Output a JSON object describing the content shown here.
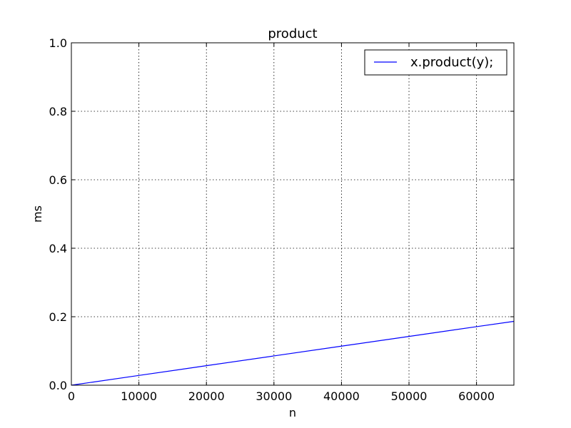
{
  "chart_data": {
    "type": "line",
    "title": "product",
    "xlabel": "n",
    "ylabel": "ms",
    "xlim": [
      0,
      65536
    ],
    "ylim": [
      0,
      1.0
    ],
    "x_ticks": [
      0,
      10000,
      20000,
      30000,
      40000,
      50000,
      60000
    ],
    "x_tick_labels": [
      "0",
      "10000",
      "20000",
      "30000",
      "40000",
      "50000",
      "60000"
    ],
    "y_ticks": [
      0,
      0.2,
      0.4,
      0.6,
      0.8,
      1.0
    ],
    "y_tick_labels": [
      "0.0",
      "0.2",
      "0.4",
      "0.6",
      "0.8",
      "1.0"
    ],
    "grid": true,
    "legend_position": "top-right",
    "series": [
      {
        "name": "x.product(y);",
        "color": "#0000ff",
        "x": [
          0,
          10000,
          20000,
          30000,
          40000,
          50000,
          60000,
          65536
        ],
        "y": [
          0,
          0.0285,
          0.057,
          0.0855,
          0.114,
          0.1425,
          0.171,
          0.1865
        ]
      }
    ]
  }
}
